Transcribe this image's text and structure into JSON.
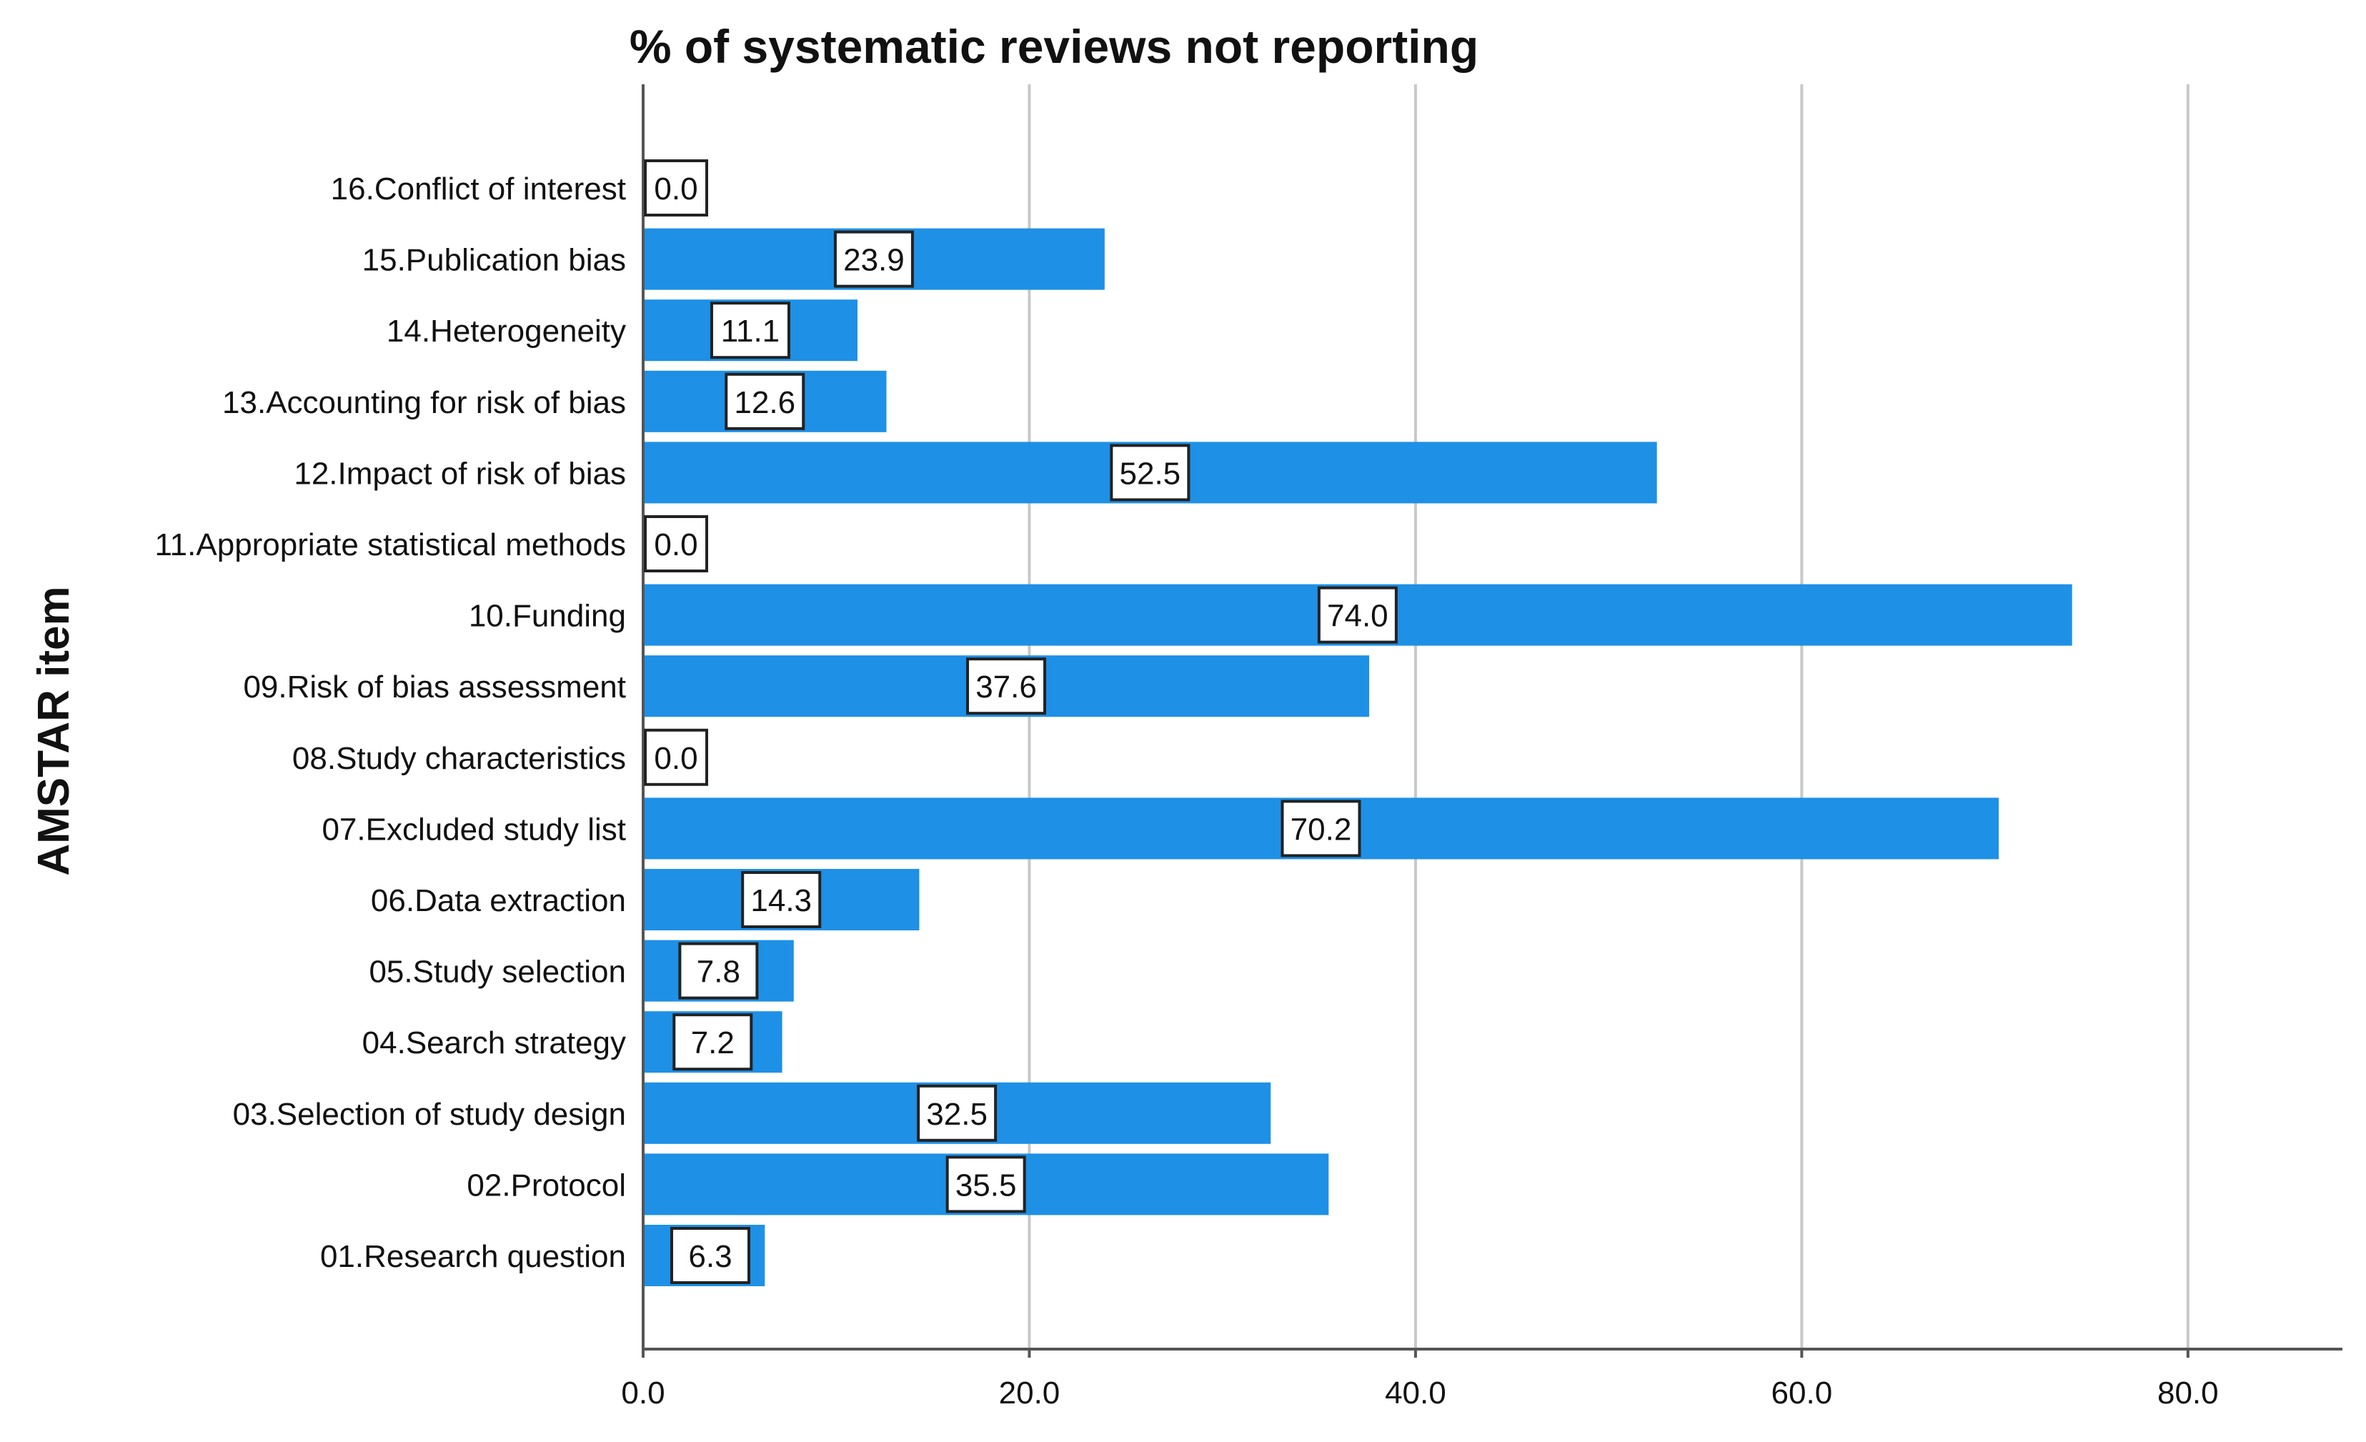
{
  "chart_data": {
    "type": "bar",
    "orientation": "horizontal",
    "title": "% of systematic reviews not reporting",
    "xlabel": "",
    "ylabel": "AMSTAR item",
    "xlim": [
      0,
      88
    ],
    "xticks": [
      0,
      20,
      40,
      60,
      80
    ],
    "xtick_labels": [
      "0.0",
      "20.0",
      "40.0",
      "60.0",
      "80.0"
    ],
    "grid": "vertical",
    "bar_color": "#1E90E6",
    "categories": [
      "16.Conflict of interest",
      "15.Publication bias",
      "14.Heterogeneity",
      "13.Accounting for risk of bias",
      "12.Impact of risk of bias",
      "11.Appropriate statistical methods",
      "10.Funding",
      "09.Risk of bias assessment",
      "08.Study characteristics",
      "07.Excluded study list",
      "06.Data extraction",
      "05.Study selection",
      "04.Search strategy",
      "03.Selection of study design",
      "02.Protocol",
      "01.Research question"
    ],
    "values": [
      0.0,
      23.9,
      11.1,
      12.6,
      52.5,
      0.0,
      74.0,
      37.6,
      0.0,
      70.2,
      14.3,
      7.8,
      7.2,
      32.5,
      35.5,
      6.3
    ],
    "value_labels": [
      "0.0",
      "23.9",
      "11.1",
      "12.6",
      "52.5",
      "0.0",
      "74.0",
      "37.6",
      "0.0",
      "70.2",
      "14.3",
      "7.8",
      "7.2",
      "32.5",
      "35.5",
      "6.3"
    ]
  }
}
